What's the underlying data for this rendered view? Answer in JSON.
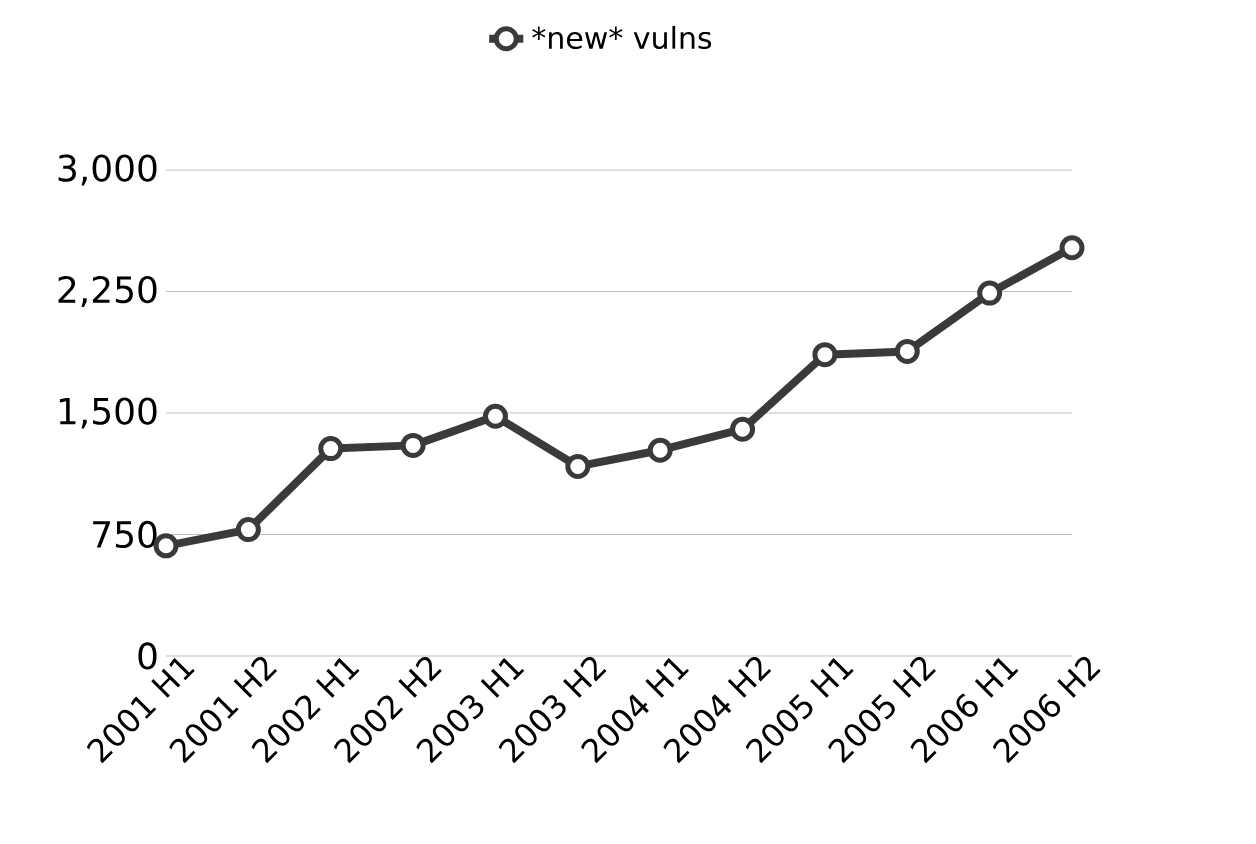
{
  "chart_data": {
    "type": "line",
    "categories": [
      "2001 H1",
      "2001 H2",
      "2002 H1",
      "2002 H2",
      "2003 H1",
      "2003 H2",
      "2004 H1",
      "2004 H2",
      "2005 H1",
      "2005 H2",
      "2006 H1",
      "2006 H2"
    ],
    "series": [
      {
        "name": "*new* vulns",
        "color": "#3a3a3a",
        "values": [
          680,
          780,
          1280,
          1300,
          1480,
          1170,
          1270,
          1400,
          1860,
          1880,
          2240,
          2520
        ]
      }
    ],
    "ylim": [
      0,
      3000
    ],
    "yticks": [
      {
        "value": 0,
        "label": "0"
      },
      {
        "value": 750,
        "label": "750"
      },
      {
        "value": 1500,
        "label": "1,500"
      },
      {
        "value": 2250,
        "label": "2,250"
      },
      {
        "value": 3000,
        "label": "3,000"
      }
    ],
    "grid": "y",
    "legend": "top",
    "marker": "circle",
    "line_style": "solid"
  }
}
